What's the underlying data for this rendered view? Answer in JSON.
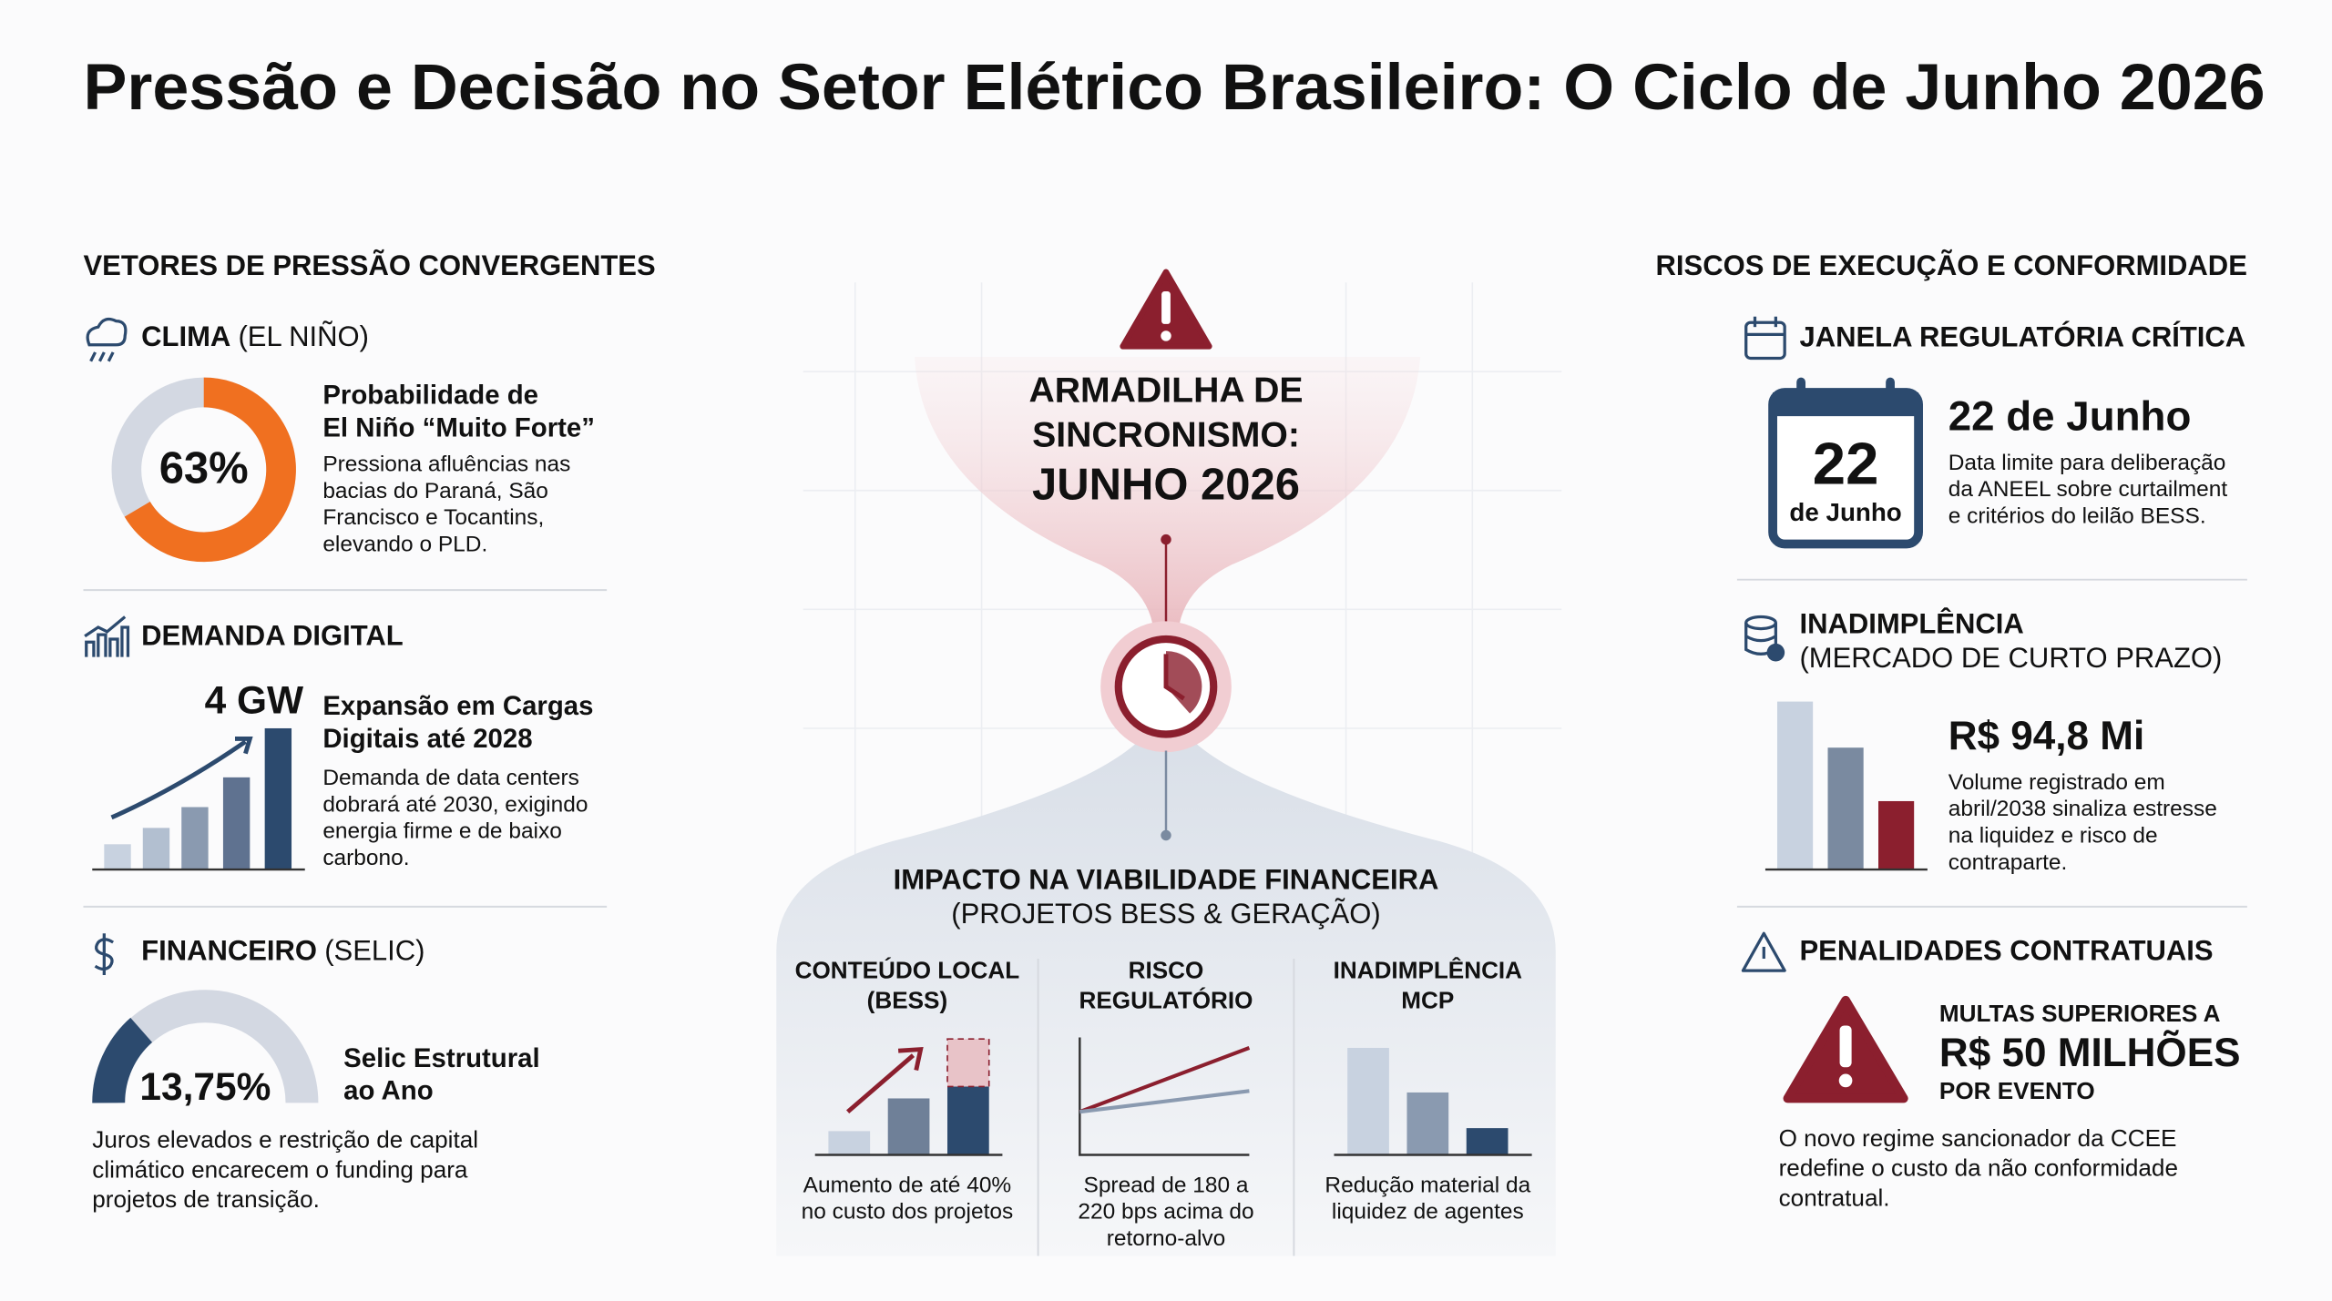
{
  "title": "Pressão e Decisão no Setor Elétrico Brasileiro: O Ciclo de Junho 2026",
  "left": {
    "heading": "VETORES DE PRESSÃO CONVERGENTES",
    "clima": {
      "label": "CLIMA",
      "sub": "(EL NIÑO)",
      "value": "63%",
      "headline": [
        "Probabilidade de",
        "El Niño “Muito Forte”"
      ],
      "text": [
        "Pressiona afluências nas",
        "bacias do Paraná, São",
        "Francisco e Tocantins,",
        "elevando o PLD."
      ]
    },
    "demanda": {
      "label": "DEMANDA DIGITAL",
      "value": "4 GW",
      "headline": [
        "Expansão em Cargas",
        "Digitais até 2028"
      ],
      "text": [
        "Demanda de data centers",
        "dobrará até 2030, exigindo",
        "energia firme e de baixo",
        "carbono."
      ]
    },
    "financeiro": {
      "label": "FINANCEIRO",
      "sub": "(SELIC)",
      "value": "13,75%",
      "headline": [
        "Selic Estrutural",
        "ao Ano"
      ],
      "text": [
        "Juros elevados e restrição de capital",
        "climático encarecem o funding para",
        "projetos de transição."
      ]
    }
  },
  "center": {
    "title": [
      "ARMADILHA DE",
      "SINCRONISMO:"
    ],
    "highlight": "JUNHO 2026",
    "impact": {
      "title": "IMPACTO NA VIABILIDADE FINANCEIRA",
      "sub": "(PROJETOS BESS & GERAÇÃO)",
      "columns": [
        {
          "title": [
            "CONTEÚDO LOCAL",
            "(BESS)"
          ],
          "text": [
            "Aumento de até 40%",
            "no custo dos projetos"
          ]
        },
        {
          "title": [
            "RISCO",
            "REGULATÓRIO"
          ],
          "text": [
            "Spread de 180 a",
            "220 bps acima do",
            "retorno-alvo"
          ]
        },
        {
          "title": [
            "INADIMPLÊNCIA",
            "MCP"
          ],
          "text": [
            "Redução material da",
            "liquidez de agentes"
          ]
        }
      ]
    }
  },
  "right": {
    "heading": "RISCOS DE EXECUÇÃO E CONFORMIDADE",
    "janela": {
      "label": "JANELA REGULATÓRIA CRÍTICA",
      "day": "22",
      "month": "de Junho",
      "value": "22 de Junho",
      "text": [
        "Data limite para deliberação",
        "da ANEEL sobre curtailment",
        "e critérios do leilão BESS."
      ]
    },
    "inadimplencia": {
      "label": "INADIMPLÊNCIA",
      "sub": "(MERCADO DE CURTO PRAZO)",
      "value": "R$ 94,8 Mi",
      "text": [
        "Volume registrado em",
        "abril/2038 sinaliza estresse",
        "na liquidez e risco de",
        "contraparte."
      ]
    },
    "penalidades": {
      "label": "PENALIDADES CONTRATUAIS",
      "pre": "MULTAS SUPERIORES A",
      "value": "R$ 50 MILHÕES",
      "post": "POR EVENTO",
      "text": [
        "O novo regime sancionador da CCEE",
        "redefine o custo da não conformidade",
        "contratual."
      ]
    }
  }
}
